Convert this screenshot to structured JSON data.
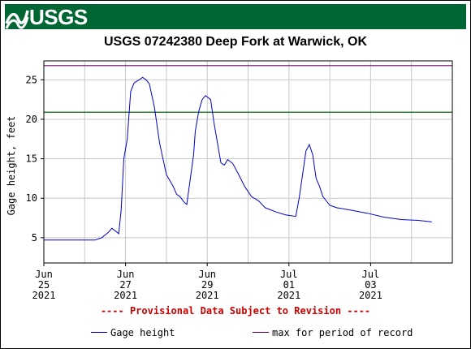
{
  "header": {
    "logo_text": "USGS",
    "logo_icon": "usgs-wave-icon",
    "banner_color": "#006633"
  },
  "chart_data": {
    "type": "line",
    "title": "USGS 07242380 Deep Fork at Warwick, OK",
    "ylabel": "Gage height, feet",
    "xlabel": "",
    "ylim": [
      1.8,
      27.4
    ],
    "yticks": [
      5,
      10,
      15,
      20,
      25
    ],
    "xlim": [
      0,
      120
    ],
    "x_unit": "hours since 2021-06-25 00:00",
    "xticks": [
      {
        "x": 0,
        "lines": [
          "Jun",
          "25",
          "2021"
        ]
      },
      {
        "x": 24,
        "lines": [
          "Jun",
          "27",
          "2021"
        ]
      },
      {
        "x": 48,
        "lines": [
          "Jun",
          "29",
          "2021"
        ]
      },
      {
        "x": 72,
        "lines": [
          "Jul",
          "01",
          "2021"
        ]
      },
      {
        "x": 96,
        "lines": [
          "Jul",
          "03",
          "2021"
        ]
      }
    ],
    "minor_xgrid_step": 12,
    "grid": true,
    "reference_lines": [
      {
        "name": "max for period of record",
        "y": 26.8,
        "color": "#660066"
      },
      {
        "name": "",
        "y": 20.9,
        "color": "#006600"
      }
    ],
    "series": [
      {
        "name": "Gage height",
        "color": "#0000cc",
        "x": [
          -6,
          15,
          17,
          19,
          20,
          21.5,
          22,
          22.7,
          23.5,
          24.5,
          25.5,
          26.5,
          28,
          29,
          30,
          31,
          32.5,
          34,
          36,
          38,
          39,
          40,
          41,
          42,
          44,
          44.5,
          45.5,
          46.5,
          47.5,
          49,
          50,
          51,
          52,
          53,
          54,
          55.5,
          57,
          59,
          61,
          63,
          65,
          68,
          71,
          74,
          75,
          76,
          77,
          78,
          79,
          80,
          81,
          82,
          84,
          86,
          90,
          95,
          100,
          105,
          110,
          114
        ],
        "y": [
          4.7,
          4.7,
          5.0,
          5.7,
          6.2,
          5.7,
          5.5,
          8.5,
          15.0,
          17.5,
          23.5,
          24.6,
          25.0,
          25.3,
          25.0,
          24.5,
          21.5,
          17.0,
          13.0,
          11.5,
          10.5,
          10.2,
          9.6,
          9.2,
          15.5,
          18.5,
          21.0,
          22.5,
          23.0,
          22.5,
          19.5,
          17.0,
          14.5,
          14.2,
          14.9,
          14.4,
          13.2,
          11.5,
          10.2,
          9.7,
          8.8,
          8.3,
          7.9,
          7.7,
          10.0,
          13.0,
          16.0,
          16.8,
          15.5,
          12.5,
          11.5,
          10.2,
          9.1,
          8.8,
          8.5,
          8.1,
          7.6,
          7.3,
          7.2,
          7.0
        ]
      },
      {
        "name": "max for period of record",
        "color": "#660066",
        "x": [],
        "y": []
      }
    ],
    "legend_placement": "bottom",
    "annotation": "---- Provisional Data Subject to Revision ----"
  }
}
